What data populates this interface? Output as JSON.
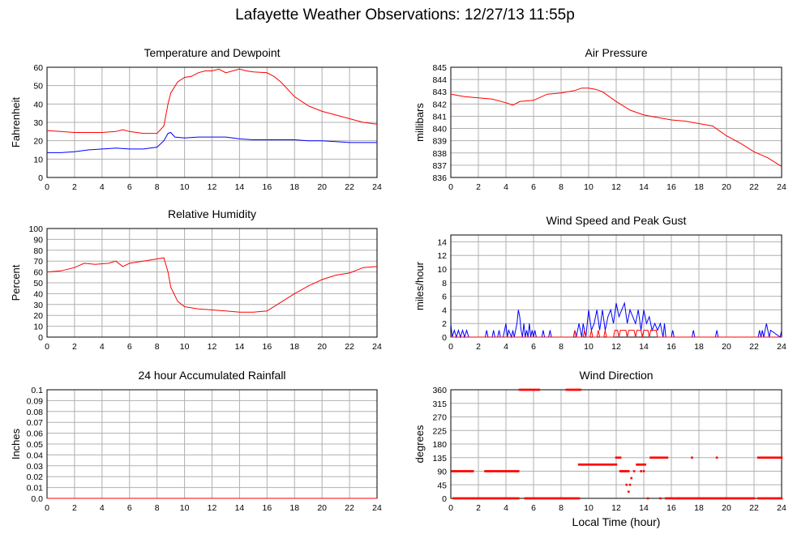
{
  "page_title": "Lafayette Weather Observations: 12/27/13 11:55p",
  "colors": {
    "red": "#ff0000",
    "blue": "#0000ff",
    "grid": "#b0b0b0"
  },
  "chart_data": [
    {
      "id": "temp",
      "type": "line",
      "title": "Temperature and Dewpoint",
      "xlabel": "",
      "ylabel": "Fahrenheit",
      "xlim": [
        0,
        24
      ],
      "ylim": [
        0,
        60
      ],
      "yticks": [
        0,
        10,
        20,
        30,
        40,
        50,
        60
      ],
      "xticks": [
        0,
        2,
        4,
        6,
        8,
        10,
        12,
        14,
        16,
        18,
        20,
        22,
        24
      ],
      "series": [
        {
          "color": "#ff0000",
          "x": [
            0,
            1,
            2,
            3,
            4,
            5,
            5.5,
            6,
            7,
            8,
            8.5,
            8.8,
            9,
            9.5,
            10,
            10.5,
            11,
            11.5,
            12,
            12.5,
            13,
            13.5,
            14,
            14.5,
            15,
            16,
            16.5,
            17,
            18,
            19,
            20,
            21,
            22,
            23,
            24
          ],
          "y": [
            25.5,
            25,
            24.5,
            24.5,
            24.5,
            25,
            26,
            25,
            24,
            24,
            28,
            40,
            46,
            52,
            54.5,
            55,
            57,
            58,
            58,
            59,
            57,
            58,
            59,
            58,
            57.5,
            57,
            55,
            52,
            44,
            39,
            36,
            34,
            32,
            30,
            29
          ]
        },
        {
          "color": "#0000ff",
          "x": [
            0,
            1,
            2,
            3,
            4,
            5,
            6,
            7,
            8,
            8.5,
            8.8,
            9,
            9.3,
            10,
            11,
            12,
            13,
            14,
            15,
            16,
            17,
            18,
            19,
            20,
            21,
            22,
            23,
            24
          ],
          "y": [
            13.5,
            13.5,
            14,
            15,
            15.5,
            16,
            15.5,
            15.5,
            16.5,
            20,
            24,
            24.5,
            22,
            21.5,
            22,
            22,
            22,
            21,
            20.5,
            20.5,
            20.5,
            20.5,
            20,
            20,
            19.5,
            19,
            19,
            19
          ]
        }
      ]
    },
    {
      "id": "pressure",
      "type": "line",
      "title": "Air Pressure",
      "xlabel": "",
      "ylabel": "millibars",
      "xlim": [
        0,
        24
      ],
      "ylim": [
        836,
        845
      ],
      "yticks": [
        836,
        837,
        838,
        839,
        840,
        841,
        842,
        843,
        844,
        845
      ],
      "xticks": [
        0,
        2,
        4,
        6,
        8,
        10,
        12,
        14,
        16,
        18,
        20,
        22,
        24
      ],
      "series": [
        {
          "color": "#ff0000",
          "x": [
            0,
            1,
            2,
            3,
            4,
            4.5,
            5,
            6,
            7,
            8,
            9,
            9.5,
            10,
            10.5,
            11,
            12,
            13,
            14,
            15,
            16,
            17,
            18,
            19,
            20,
            21,
            22,
            23,
            24
          ],
          "y": [
            842.8,
            842.6,
            842.5,
            842.4,
            842.1,
            841.9,
            842.2,
            842.3,
            842.8,
            842.9,
            843.1,
            843.3,
            843.3,
            843.2,
            843.0,
            842.2,
            841.5,
            841.1,
            840.9,
            840.7,
            840.6,
            840.4,
            840.2,
            839.4,
            838.8,
            838.1,
            837.6,
            836.9
          ]
        }
      ]
    },
    {
      "id": "humidity",
      "type": "line",
      "title": "Relative Humidity",
      "xlabel": "",
      "ylabel": "Percent",
      "xlim": [
        0,
        24
      ],
      "ylim": [
        0,
        100
      ],
      "yticks": [
        0,
        10,
        20,
        30,
        40,
        50,
        60,
        70,
        80,
        90,
        100
      ],
      "xticks": [
        0,
        2,
        4,
        6,
        8,
        10,
        12,
        14,
        16,
        18,
        20,
        22,
        24
      ],
      "series": [
        {
          "color": "#ff0000",
          "x": [
            0,
            1,
            2,
            2.7,
            3.5,
            4.5,
            5,
            5.5,
            6,
            7,
            8,
            8.5,
            8.8,
            9,
            9.5,
            10,
            11,
            12,
            13,
            14,
            15,
            16,
            17,
            18,
            19,
            20,
            21,
            22,
            23,
            24
          ],
          "y": [
            60,
            61,
            64,
            68,
            67,
            68,
            70,
            65,
            68,
            70,
            72,
            73,
            60,
            46,
            33,
            28,
            26,
            25,
            24,
            23,
            23,
            24,
            32,
            40,
            47,
            53,
            57,
            59,
            64,
            65
          ]
        }
      ]
    },
    {
      "id": "wind",
      "type": "line",
      "title": "Wind Speed and Peak Gust",
      "xlabel": "",
      "ylabel": "miles/hour",
      "xlim": [
        0,
        24
      ],
      "ylim": [
        0,
        15
      ],
      "yticks": [
        0,
        2,
        4,
        6,
        8,
        10,
        12,
        14
      ],
      "xticks": [
        0,
        2,
        4,
        6,
        8,
        10,
        12,
        14,
        16,
        18,
        20,
        22,
        24
      ],
      "series": [
        {
          "color": "#0000ff",
          "x": [
            0,
            0.1,
            0.25,
            0.4,
            0.55,
            0.7,
            0.85,
            1.0,
            1.15,
            1.3,
            2.5,
            2.6,
            2.7,
            3.0,
            3.1,
            3.2,
            3.4,
            3.5,
            3.6,
            3.8,
            3.9,
            4.0,
            4.1,
            4.2,
            4.4,
            4.5,
            4.6,
            4.8,
            4.9,
            5.0,
            5.1,
            5.2,
            5.3,
            5.4,
            5.5,
            5.6,
            5.7,
            5.8,
            5.9,
            6.0,
            6.1,
            6.2,
            6.6,
            6.7,
            6.8,
            7.1,
            7.2,
            7.3,
            8.9,
            9.0,
            9.1,
            9.3,
            9.4,
            9.5,
            9.6,
            9.8,
            10.0,
            10.2,
            10.4,
            10.6,
            10.8,
            11.0,
            11.2,
            11.4,
            11.6,
            11.8,
            12.0,
            12.2,
            12.4,
            12.6,
            12.8,
            13.0,
            13.2,
            13.4,
            13.6,
            13.8,
            14.0,
            14.2,
            14.4,
            14.6,
            14.8,
            15.0,
            15.2,
            15.4,
            15.5,
            15.6,
            16.0,
            16.1,
            16.2,
            17.5,
            17.6,
            17.7,
            19.2,
            19.3,
            19.4,
            22.3,
            22.4,
            22.5,
            22.6,
            22.7,
            22.8,
            22.9,
            23.0,
            23.1,
            23.2,
            23.9,
            24
          ],
          "y": [
            2,
            0,
            1,
            0,
            1,
            0,
            1,
            0,
            1,
            0,
            0,
            1,
            0,
            0,
            1,
            0,
            0,
            1,
            0,
            0,
            1,
            2,
            0,
            1,
            0,
            1,
            0,
            2,
            4,
            3,
            1,
            0,
            2,
            0,
            1,
            0,
            2,
            0,
            1,
            0,
            1,
            0,
            0,
            1,
            0,
            0,
            1,
            0,
            0,
            1,
            0,
            2,
            1,
            0,
            2,
            0,
            4,
            1,
            2,
            4,
            1,
            4,
            1,
            3,
            4,
            2,
            5,
            3,
            4,
            5,
            2,
            4,
            3,
            2,
            4,
            1,
            4,
            2,
            3,
            1,
            2,
            1,
            2,
            0,
            2,
            0,
            0,
            1,
            0,
            0,
            1,
            0,
            0,
            1,
            0,
            0,
            1,
            0,
            1,
            0,
            1,
            2,
            1,
            0,
            1,
            0,
            1
          ]
        },
        {
          "color": "#ff0000",
          "x": [
            0,
            8.9,
            9.0,
            9.1,
            9.6,
            9.7,
            9.8,
            10.1,
            10.2,
            10.3,
            10.6,
            10.7,
            10.8,
            11.1,
            11.2,
            11.3,
            11.8,
            11.9,
            12.0,
            12.1,
            12.2,
            12.3,
            12.4,
            12.7,
            12.8,
            12.9,
            13.3,
            13.4,
            13.5,
            13.8,
            13.9,
            14.0,
            14.3,
            14.4,
            14.5,
            14.9,
            15.0,
            15.1,
            24
          ],
          "y": [
            0,
            0,
            1,
            0,
            0,
            1,
            0,
            0,
            1,
            0,
            0,
            1,
            0,
            0,
            1,
            0,
            0,
            1,
            1,
            1,
            0,
            1,
            1,
            1,
            0,
            1,
            1,
            0,
            1,
            1,
            0,
            1,
            1,
            0,
            1,
            1,
            0,
            0,
            0
          ]
        }
      ]
    },
    {
      "id": "rain",
      "type": "line",
      "title": "24 hour Accumulated Rainfall",
      "xlabel": "",
      "ylabel": "Inches",
      "xlim": [
        0,
        24
      ],
      "ylim": [
        0,
        0.1
      ],
      "yticks": [
        "0.0",
        "0.01",
        "0.02",
        "0.03",
        "0.04",
        "0.05",
        "0.06",
        "0.07",
        "0.08",
        "0.09",
        "0.1"
      ],
      "xticks": [
        0,
        2,
        4,
        6,
        8,
        10,
        12,
        14,
        16,
        18,
        20,
        22,
        24
      ],
      "series": [
        {
          "color": "#ff0000",
          "x": [
            0,
            24
          ],
          "y": [
            0,
            0
          ]
        }
      ]
    },
    {
      "id": "direction",
      "type": "scatter",
      "title": "Wind Direction",
      "xlabel": "Local Time (hour)",
      "ylabel": "degrees",
      "xlim": [
        0,
        24
      ],
      "ylim": [
        0,
        360
      ],
      "yticks": [
        0,
        45,
        90,
        135,
        180,
        225,
        270,
        315,
        360
      ],
      "xticks": [
        0,
        2,
        4,
        6,
        8,
        10,
        12,
        14,
        16,
        18,
        20,
        22,
        24
      ],
      "series": [
        {
          "color": "#ff0000",
          "segments": [
            [
              0.1,
              1.6,
              90
            ],
            [
              2.5,
              4.9,
              90
            ],
            [
              0.2,
              4.9,
              0
            ],
            [
              5.0,
              6.4,
              360
            ],
            [
              8.4,
              9.4,
              360
            ],
            [
              5.4,
              9.3,
              0
            ],
            [
              9.3,
              12.0,
              112
            ],
            [
              12.0,
              12.3,
              135
            ],
            [
              12.3,
              12.9,
              90
            ],
            [
              13.5,
              14.0,
              112
            ],
            [
              14.5,
              15.7,
              135
            ],
            [
              15.6,
              22.0,
              0
            ],
            [
              22.3,
              23.9,
              135
            ],
            [
              22.3,
              24.0,
              0
            ]
          ],
          "x": [
            12.4,
            12.6,
            12.75,
            12.9,
            13.0,
            13.1,
            13.3,
            13.6,
            14.0,
            14.3,
            15.2,
            16.5,
            17.5,
            19.3,
            20.0,
            24.0,
            13.8,
            14.1
          ],
          "y": [
            90,
            90,
            45,
            22,
            45,
            67,
            90,
            112,
            90,
            0,
            0,
            0,
            135,
            135,
            0,
            135,
            90,
            112
          ]
        }
      ]
    }
  ]
}
